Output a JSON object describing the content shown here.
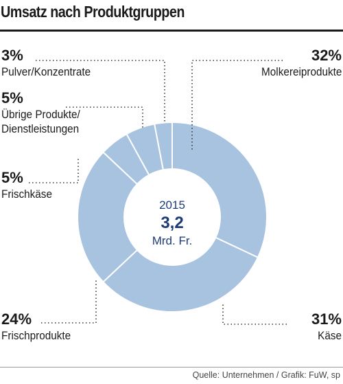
{
  "title": "Umsatz nach Produktgruppen",
  "source": "Quelle: Unternehmen / Grafik: FuW, sp",
  "chart_data": {
    "type": "pie",
    "title": "Umsatz nach Produktgruppen",
    "center": {
      "year": "2015",
      "value": "3,2",
      "unit": "Mrd. Fr."
    },
    "slices": [
      {
        "label": "Molkereiprodukte",
        "value": 32,
        "pct_text": "32%"
      },
      {
        "label": "Käse",
        "value": 31,
        "pct_text": "31%"
      },
      {
        "label": "Frischprodukte",
        "value": 24,
        "pct_text": "24%"
      },
      {
        "label": "Frischkäse",
        "value": 5,
        "pct_text": "5%"
      },
      {
        "label": "Übrige Produkte/ Dienstleistungen",
        "label_lines": [
          "Übrige Produkte/",
          "Dienstleistungen"
        ],
        "value": 5,
        "pct_text": "5%"
      },
      {
        "label": "Pulver/Konzentrate",
        "value": 3,
        "pct_text": "3%"
      }
    ],
    "colors": {
      "slice": "#a8c3df",
      "separator": "#ffffff",
      "center_text": "#1d3a78",
      "leader": "#333333"
    }
  }
}
